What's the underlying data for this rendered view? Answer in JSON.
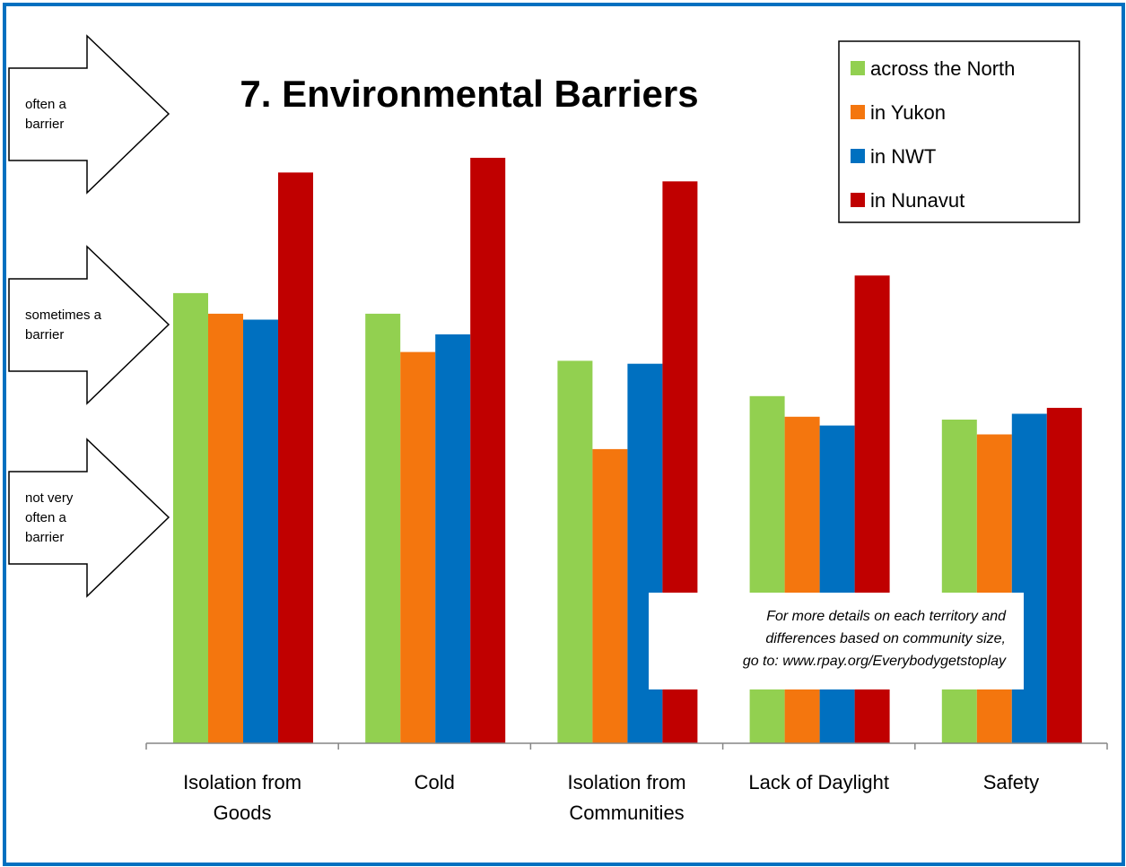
{
  "chart_data": {
    "type": "bar",
    "title": "7. Environmental Barriers",
    "categories": [
      "Isolation from Goods",
      "Cold",
      "Isolation from Communities",
      "Lack of Daylight",
      "Safety"
    ],
    "category_lines": [
      [
        "Isolation from",
        "Goods"
      ],
      [
        "Cold"
      ],
      [
        "Isolation from",
        "Communities"
      ],
      [
        "Lack of Daylight"
      ],
      [
        "Safety"
      ]
    ],
    "series": [
      {
        "name": "across the North",
        "color": "#92D050",
        "values": [
          2.38,
          2.31,
          2.15,
          2.03,
          1.95
        ]
      },
      {
        "name": "in Yukon",
        "color": "#F4760E",
        "values": [
          2.31,
          2.18,
          1.85,
          1.96,
          1.9
        ]
      },
      {
        "name": "in NWT",
        "color": "#0070C0",
        "values": [
          2.29,
          2.24,
          2.14,
          1.93,
          1.97
        ]
      },
      {
        "name": "in Nunavut",
        "color": "#C00000",
        "values": [
          2.79,
          2.84,
          2.76,
          2.44,
          1.99
        ]
      }
    ],
    "ylim": [
      0.85,
      2.84
    ],
    "y_axis_visible": false,
    "grid": false,
    "legend_position": "top-right",
    "scale_markers": [
      {
        "lines": [
          "often a",
          "barrier"
        ],
        "value": 3.0
      },
      {
        "lines": [
          "sometimes a",
          "barrier"
        ],
        "value": 2.0
      },
      {
        "lines": [
          "not very",
          "often a",
          "barrier"
        ],
        "value": 1.0
      }
    ],
    "note": [
      "For more details on each territory and",
      "differences based on community size,",
      "go to: www.rpay.org/Everybodygetstoplay"
    ]
  },
  "colors": {
    "frame_border": "#0070C0"
  }
}
